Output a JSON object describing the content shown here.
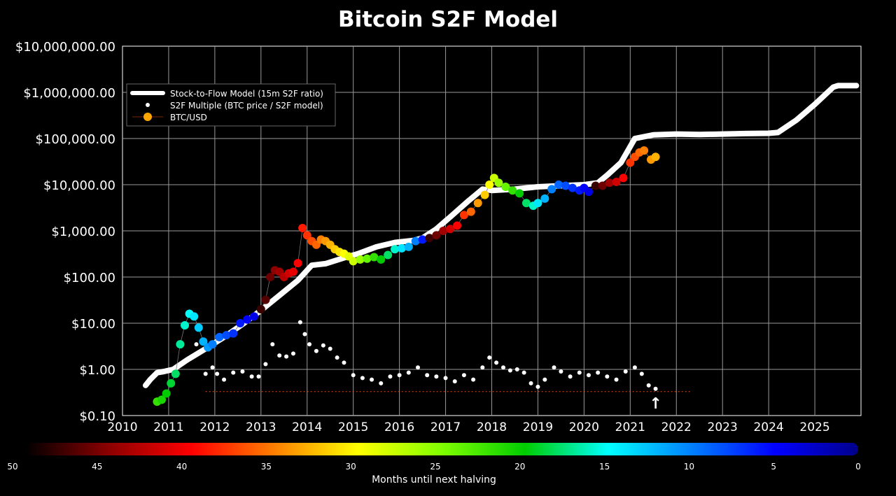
{
  "chart_data": {
    "type": "scatter",
    "title": "Bitcoin S2F Model",
    "xlabel": "",
    "ylabel": "",
    "y_scale": "log",
    "xlim": [
      2010,
      2026
    ],
    "ylim": [
      0.1,
      10000000
    ],
    "grid": true,
    "x_ticks": [
      "2010",
      "2011",
      "2012",
      "2013",
      "2014",
      "2015",
      "2016",
      "2017",
      "2018",
      "2019",
      "2020",
      "2021",
      "2022",
      "2023",
      "2024",
      "2025"
    ],
    "y_ticks": [
      "$0.10",
      "$1.00",
      "$10.00",
      "$100.00",
      "$1,000.00",
      "$10,000.00",
      "$100,000.00",
      "$1,000,000.00",
      "$10,000,000.00"
    ],
    "legend": {
      "placement": "upper-left",
      "entries": [
        "Stock-to-Flow Model (15m S2F ratio)",
        "S2F Multiple (BTC price / S2F model)",
        "BTC/USD"
      ]
    },
    "series": [
      {
        "name": "Stock-to-Flow Model (15m S2F ratio)",
        "style": "line",
        "color": "#ffffff",
        "x": [
          2010.5,
          2010.6,
          2010.75,
          2010.9,
          2011.1,
          2011.4,
          2011.8,
          2012.2,
          2012.6,
          2013.0,
          2013.4,
          2013.8,
          2014.1,
          2014.4,
          2014.8,
          2015.1,
          2015.5,
          2015.9,
          2016.3,
          2016.5,
          2016.8,
          2017.1,
          2017.5,
          2017.8,
          2018.0,
          2018.5,
          2019.0,
          2019.5,
          2020.0,
          2020.3,
          2020.5,
          2020.8,
          2021.1,
          2021.5,
          2022.0,
          2022.5,
          2023.0,
          2023.5,
          2024.0,
          2024.2,
          2024.6,
          2025.0,
          2025.4,
          2025.5,
          2025.9
        ],
        "values": [
          0.45,
          0.6,
          0.85,
          0.9,
          1.0,
          1.6,
          2.8,
          5.0,
          9.5,
          19,
          40,
          85,
          180,
          195,
          260,
          320,
          450,
          560,
          620,
          700,
          1100,
          2000,
          4500,
          8000,
          7500,
          8000,
          9000,
          9500,
          10000,
          11000,
          16000,
          30000,
          100000,
          120000,
          125000,
          122000,
          125000,
          128000,
          130000,
          135000,
          250000,
          550000,
          1300000,
          1400000,
          1400000
        ]
      },
      {
        "name": "S2F Multiple (BTC price / S2F model)",
        "style": "scatter",
        "color": "#ffffff",
        "x": [
          2011.6,
          2011.8,
          2011.95,
          2012.05,
          2012.2,
          2012.4,
          2012.6,
          2012.8,
          2012.95,
          2013.1,
          2013.25,
          2013.4,
          2013.55,
          2013.7,
          2013.85,
          2013.95,
          2014.05,
          2014.2,
          2014.35,
          2014.5,
          2014.65,
          2014.8,
          2015.0,
          2015.2,
          2015.4,
          2015.6,
          2015.8,
          2016.0,
          2016.2,
          2016.4,
          2016.6,
          2016.8,
          2017.0,
          2017.2,
          2017.4,
          2017.6,
          2017.8,
          2017.95,
          2018.1,
          2018.25,
          2018.4,
          2018.55,
          2018.7,
          2018.85,
          2019.0,
          2019.15,
          2019.35,
          2019.5,
          2019.7,
          2019.9,
          2020.1,
          2020.3,
          2020.5,
          2020.7,
          2020.9,
          2021.1,
          2021.25,
          2021.4,
          2021.55
        ],
        "values": [
          3.5,
          0.8,
          1.1,
          0.8,
          0.6,
          0.85,
          0.9,
          0.7,
          0.7,
          1.3,
          3.5,
          2.0,
          1.9,
          2.2,
          10.5,
          5.8,
          3.5,
          2.5,
          3.3,
          2.8,
          1.8,
          1.4,
          0.75,
          0.65,
          0.6,
          0.5,
          0.7,
          0.75,
          0.85,
          1.1,
          0.75,
          0.7,
          0.65,
          0.55,
          0.75,
          0.6,
          1.1,
          1.8,
          1.4,
          1.1,
          0.95,
          1.0,
          0.85,
          0.5,
          0.42,
          0.6,
          1.1,
          0.9,
          0.7,
          0.85,
          0.75,
          0.85,
          0.7,
          0.6,
          0.9,
          1.1,
          0.8,
          0.45,
          0.38
        ]
      },
      {
        "name": "BTC/USD",
        "style": "scatter",
        "color_by": "Months until next halving",
        "x": [
          2010.75,
          2010.85,
          2010.95,
          2011.05,
          2011.15,
          2011.25,
          2011.35,
          2011.45,
          2011.55,
          2011.65,
          2011.75,
          2011.85,
          2011.95,
          2012.1,
          2012.25,
          2012.4,
          2012.55,
          2012.7,
          2012.85,
          2013.0,
          2013.1,
          2013.2,
          2013.3,
          2013.4,
          2013.5,
          2013.6,
          2013.7,
          2013.8,
          2013.9,
          2014.0,
          2014.1,
          2014.2,
          2014.3,
          2014.4,
          2014.5,
          2014.6,
          2014.7,
          2014.8,
          2014.9,
          2015.0,
          2015.15,
          2015.3,
          2015.45,
          2015.6,
          2015.75,
          2015.9,
          2016.05,
          2016.2,
          2016.35,
          2016.5,
          2016.65,
          2016.8,
          2016.95,
          2017.1,
          2017.25,
          2017.4,
          2017.55,
          2017.7,
          2017.85,
          2017.95,
          2018.05,
          2018.15,
          2018.3,
          2018.45,
          2018.6,
          2018.75,
          2018.9,
          2019.0,
          2019.15,
          2019.3,
          2019.45,
          2019.6,
          2019.75,
          2019.9,
          2020.0,
          2020.1,
          2020.25,
          2020.4,
          2020.55,
          2020.7,
          2020.85,
          2021.0,
          2021.1,
          2021.2,
          2021.3,
          2021.45,
          2021.55
        ],
        "values": [
          0.2,
          0.22,
          0.3,
          0.5,
          0.8,
          3.5,
          9,
          16,
          14,
          8,
          4,
          3,
          3.5,
          5,
          5.5,
          6,
          10,
          12,
          14,
          20,
          32,
          100,
          140,
          130,
          100,
          120,
          130,
          200,
          1150,
          800,
          600,
          500,
          650,
          600,
          500,
          400,
          350,
          320,
          280,
          220,
          240,
          250,
          270,
          240,
          300,
          400,
          420,
          450,
          600,
          650,
          700,
          800,
          1000,
          1100,
          1300,
          2200,
          2600,
          4000,
          6000,
          10000,
          14000,
          11000,
          9000,
          7500,
          6500,
          4000,
          3500,
          4000,
          5000,
          8000,
          10000,
          9500,
          8500,
          7500,
          8500,
          7000,
          9500,
          9500,
          11000,
          11500,
          14000,
          30000,
          40000,
          50000,
          55000,
          35000,
          40000
        ],
        "months_until_halving": [
          22,
          21,
          20,
          19,
          18,
          17,
          16,
          15,
          14,
          13,
          12,
          11,
          10,
          9,
          8,
          7,
          6,
          5,
          4,
          48,
          47,
          46,
          45,
          44,
          43,
          42,
          41,
          40,
          39,
          38,
          37,
          36,
          35,
          34,
          33,
          32,
          31,
          30,
          29,
          28,
          26,
          24,
          22,
          20,
          18,
          16,
          14,
          12,
          10,
          6,
          48,
          46,
          44,
          42,
          40,
          38,
          36,
          34,
          32,
          30,
          28,
          26,
          24,
          22,
          20,
          18,
          16,
          14,
          12,
          10,
          9,
          8,
          7,
          6,
          5,
          4,
          48,
          46,
          44,
          42,
          40,
          38,
          37,
          36,
          35,
          34,
          33
        ]
      }
    ],
    "reference_line": {
      "style": "dotted",
      "color": "#ff4400",
      "y": 0.33,
      "x": [
        2011.8,
        2022.3
      ]
    },
    "arrow_annotation": {
      "x": 2021.55,
      "y": 0.2,
      "symbol": "↑"
    },
    "colorbar": {
      "label": "Months until next halving",
      "ticks": [
        "50",
        "45",
        "40",
        "35",
        "30",
        "25",
        "20",
        "15",
        "10",
        "5",
        "0"
      ],
      "colors": [
        "#000000",
        "#8b0000",
        "#ff0000",
        "#ff8000",
        "#ffff00",
        "#80ff00",
        "#00cc00",
        "#00ffff",
        "#0080ff",
        "#0000ff",
        "#00008b"
      ]
    }
  }
}
